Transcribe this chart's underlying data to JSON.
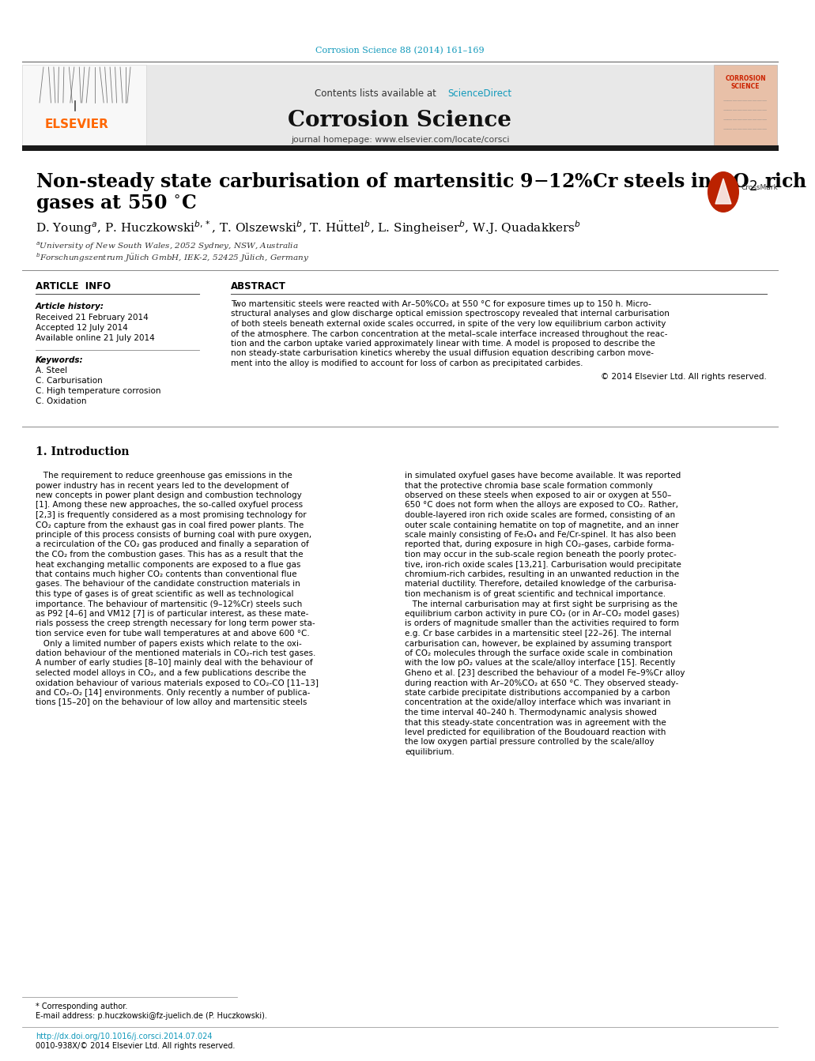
{
  "journal_ref": "Corrosion Science 88 (2014) 161–169",
  "journal_name": "Corrosion Science",
  "journal_homepage": "journal homepage: www.elsevier.com/locate/corsci",
  "contents_plain": "Contents lists available at ",
  "contents_link": "ScienceDirect",
  "paper_title_line1": "Non-steady state carburisation of martensitic 9–12%Cr steels in CO$_2$ rich",
  "paper_title_line2": "gases at 550 °C",
  "authors_line": "D. Young$^{a}$, P. Huczkowski$^{b,*}$, T. Olszewski$^{b}$, T. Hüttel$^{b}$, L. Singheiser$^{b}$, W.J. Quadakkers$^{b}$",
  "affil_a": "$^{a}$University of New South Wales, 2052 Sydney, NSW, Australia",
  "affil_b": "$^{b}$Forschungszentrum Jülich GmbH, IEK-2, 52425 Jülich, Germany",
  "ai_header": "ARTICLE  INFO",
  "ab_header": "ABSTRACT",
  "hist_header": "Article history:",
  "received": "Received 21 February 2014",
  "accepted": "Accepted 12 July 2014",
  "available": "Available online 21 July 2014",
  "kw_header": "Keywords:",
  "keywords": [
    "A. Steel",
    "C. Carburisation",
    "C. High temperature corrosion",
    "C. Oxidation"
  ],
  "abs_lines": [
    "Two martensitic steels were reacted with Ar–50%CO₂ at 550 °C for exposure times up to 150 h. Micro-",
    "structural analyses and glow discharge optical emission spectroscopy revealed that internal carburisation",
    "of both steels beneath external oxide scales occurred, in spite of the very low equilibrium carbon activity",
    "of the atmosphere. The carbon concentration at the metal–scale interface increased throughout the reac-",
    "tion and the carbon uptake varied approximately linear with time. A model is proposed to describe the",
    "non steady-state carburisation kinetics whereby the usual diffusion equation describing carbon move-",
    "ment into the alloy is modified to account for loss of carbon as precipitated carbides."
  ],
  "copyright": "© 2014 Elsevier Ltd. All rights reserved.",
  "intro_header": "1. Introduction",
  "col1_lines": [
    "   The requirement to reduce greenhouse gas emissions in the",
    "power industry has in recent years led to the development of",
    "new concepts in power plant design and combustion technology",
    "[1]. Among these new approaches, the so-called oxyfuel process",
    "[2,3] is frequently considered as a most promising technology for",
    "CO₂ capture from the exhaust gas in coal fired power plants. The",
    "principle of this process consists of burning coal with pure oxygen,",
    "a recirculation of the CO₂ gas produced and finally a separation of",
    "the CO₂ from the combustion gases. This has as a result that the",
    "heat exchanging metallic components are exposed to a flue gas",
    "that contains much higher CO₂ contents than conventional flue",
    "gases. The behaviour of the candidate construction materials in",
    "this type of gases is of great scientific as well as technological",
    "importance. The behaviour of martensitic (9–12%Cr) steels such",
    "as P92 [4–6] and VM12 [7] is of particular interest, as these mate-",
    "rials possess the creep strength necessary for long term power sta-",
    "tion service even for tube wall temperatures at and above 600 °C.",
    "   Only a limited number of papers exists which relate to the oxi-",
    "dation behaviour of the mentioned materials in CO₂-rich test gases.",
    "A number of early studies [8–10] mainly deal with the behaviour of",
    "selected model alloys in CO₂, and a few publications describe the",
    "oxidation behaviour of various materials exposed to CO₂-CO [11–13]",
    "and CO₂-O₂ [14] environments. Only recently a number of publica-",
    "tions [15–20] on the behaviour of low alloy and martensitic steels"
  ],
  "col2_lines": [
    "in simulated oxyfuel gases have become available. It was reported",
    "that the protective chromia base scale formation commonly",
    "observed on these steels when exposed to air or oxygen at 550–",
    "650 °C does not form when the alloys are exposed to CO₂. Rather,",
    "double-layered iron rich oxide scales are formed, consisting of an",
    "outer scale containing hematite on top of magnetite, and an inner",
    "scale mainly consisting of Fe₃O₄ and Fe/Cr-spinel. It has also been",
    "reported that, during exposure in high CO₂-gases, carbide forma-",
    "tion may occur in the sub-scale region beneath the poorly protec-",
    "tive, iron-rich oxide scales [13,21]. Carburisation would precipitate",
    "chromium-rich carbides, resulting in an unwanted reduction in the",
    "material ductility. Therefore, detailed knowledge of the carburisa-",
    "tion mechanism is of great scientific and technical importance.",
    "   The internal carburisation may at first sight be surprising as the",
    "equilibrium carbon activity in pure CO₂ (or in Ar–CO₂ model gases)",
    "is orders of magnitude smaller than the activities required to form",
    "e.g. Cr base carbides in a martensitic steel [22–26]. The internal",
    "carburisation can, however, be explained by assuming transport",
    "of CO₂ molecules through the surface oxide scale in combination",
    "with the low pO₂ values at the scale/alloy interface [15]. Recently",
    "Gheno et al. [23] described the behaviour of a model Fe–9%Cr alloy",
    "during reaction with Ar–20%CO₂ at 650 °C. They observed steady-",
    "state carbide precipitate distributions accompanied by a carbon",
    "concentration at the oxide/alloy interface which was invariant in",
    "the time interval 40–240 h. Thermodynamic analysis showed",
    "that this steady-state concentration was in agreement with the",
    "level predicted for equilibration of the Boudouard reaction with",
    "the low oxygen partial pressure controlled by the scale/alloy",
    "equilibrium."
  ],
  "fn1": "* Corresponding author.",
  "fn2": "E-mail address: p.huczkowski@fz-juelich.de (P. Huczkowski).",
  "fn3": "http://dx.doi.org/10.1016/j.corsci.2014.07.024",
  "fn4": "0010-938X/© 2014 Elsevier Ltd. All rights reserved.",
  "elsevier_color": "#FF6600",
  "link_color": "#1199BB",
  "header_gray": "#E8E8E8",
  "black_bar": "#1a1a1a",
  "bg_color": "#FFFFFF",
  "gray_line": "#888888"
}
